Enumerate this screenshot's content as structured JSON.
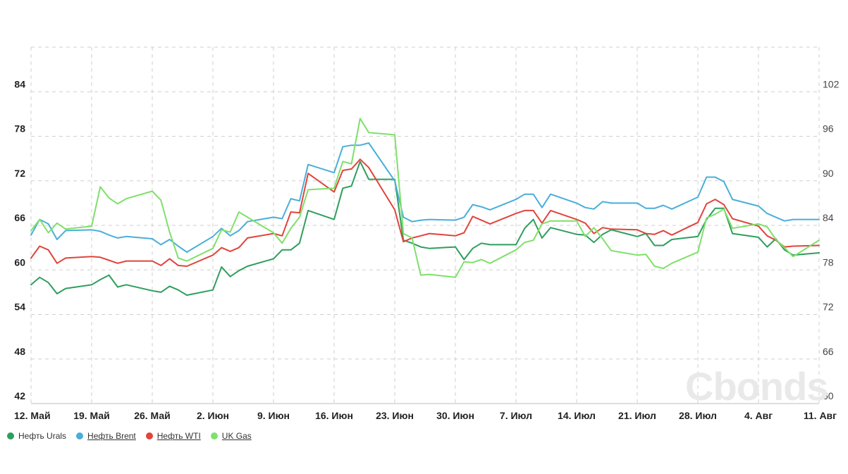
{
  "watermark": "Cbonds",
  "chart_data": {
    "type": "line",
    "x_ticks": [
      "12. Май",
      "19. Май",
      "26. Май",
      "2. Июн",
      "9. Июн",
      "16. Июн",
      "23. Июн",
      "30. Июн",
      "7. Июл",
      "14. Июл",
      "21. Июл",
      "28. Июл",
      "4. Авг",
      "11. Авг"
    ],
    "x_range": [
      0,
      91
    ],
    "y_left": {
      "ticks": [
        42,
        48,
        54,
        60,
        66,
        72,
        78,
        84
      ],
      "range": [
        42,
        90
      ]
    },
    "y_right": {
      "ticks": [
        60,
        66,
        72,
        78,
        84,
        90,
        96,
        102
      ],
      "range": [
        60,
        108
      ]
    },
    "grid": true,
    "legend_position": "bottom-left",
    "series": [
      {
        "name": "Нефть Urals",
        "color": "#2e9e5e",
        "axis": "left",
        "underlined": false,
        "points": [
          [
            0,
            58.0
          ],
          [
            1,
            59.0
          ],
          [
            2,
            58.3
          ],
          [
            3,
            56.8
          ],
          [
            4,
            57.5
          ],
          [
            7,
            58.0
          ],
          [
            8,
            58.7
          ],
          [
            9,
            59.3
          ],
          [
            10,
            57.7
          ],
          [
            11,
            58.0
          ],
          [
            14,
            57.2
          ],
          [
            15,
            57.0
          ],
          [
            16,
            57.8
          ],
          [
            17,
            57.3
          ],
          [
            18,
            56.6
          ],
          [
            21,
            57.3
          ],
          [
            22,
            60.4
          ],
          [
            23,
            59.1
          ],
          [
            24,
            59.9
          ],
          [
            25,
            60.5
          ],
          [
            28,
            61.5
          ],
          [
            29,
            62.7
          ],
          [
            30,
            62.7
          ],
          [
            31,
            63.6
          ],
          [
            32,
            68.0
          ],
          [
            35,
            66.8
          ],
          [
            36,
            71.0
          ],
          [
            37,
            71.3
          ],
          [
            38,
            74.6
          ],
          [
            39,
            72.2
          ],
          [
            42,
            72.2
          ],
          [
            43,
            64.0
          ],
          [
            44,
            63.6
          ],
          [
            45,
            63.1
          ],
          [
            46,
            62.9
          ],
          [
            49,
            63.1
          ],
          [
            50,
            61.4
          ],
          [
            51,
            62.9
          ],
          [
            52,
            63.6
          ],
          [
            53,
            63.4
          ],
          [
            56,
            63.4
          ],
          [
            57,
            65.6
          ],
          [
            58,
            66.8
          ],
          [
            59,
            64.3
          ],
          [
            60,
            65.7
          ],
          [
            63,
            64.8
          ],
          [
            64,
            64.7
          ],
          [
            65,
            63.7
          ],
          [
            66,
            64.8
          ],
          [
            67,
            65.4
          ],
          [
            70,
            64.5
          ],
          [
            71,
            64.9
          ],
          [
            72,
            63.3
          ],
          [
            73,
            63.3
          ],
          [
            74,
            64.1
          ],
          [
            77,
            64.5
          ],
          [
            78,
            66.8
          ],
          [
            79,
            68.3
          ],
          [
            80,
            68.3
          ],
          [
            81,
            64.9
          ],
          [
            84,
            64.4
          ],
          [
            85,
            63.1
          ],
          [
            86,
            64.2
          ],
          [
            87,
            62.7
          ],
          [
            88,
            62.0
          ],
          [
            91,
            62.3
          ]
        ]
      },
      {
        "name": "Нефть Brent",
        "color": "#4aaed9",
        "axis": "left",
        "underlined": true,
        "points": [
          [
            0,
            64.7
          ],
          [
            1,
            66.8
          ],
          [
            2,
            66.2
          ],
          [
            3,
            64.1
          ],
          [
            4,
            65.3
          ],
          [
            7,
            65.4
          ],
          [
            8,
            65.2
          ],
          [
            9,
            64.7
          ],
          [
            10,
            64.3
          ],
          [
            11,
            64.5
          ],
          [
            14,
            64.2
          ],
          [
            15,
            63.4
          ],
          [
            16,
            64.1
          ],
          [
            17,
            63.2
          ],
          [
            18,
            62.4
          ],
          [
            21,
            64.5
          ],
          [
            22,
            65.6
          ],
          [
            23,
            64.6
          ],
          [
            24,
            65.3
          ],
          [
            25,
            66.5
          ],
          [
            28,
            67.1
          ],
          [
            29,
            66.9
          ],
          [
            30,
            69.6
          ],
          [
            31,
            69.3
          ],
          [
            32,
            74.2
          ],
          [
            35,
            73.1
          ],
          [
            36,
            76.6
          ],
          [
            37,
            76.8
          ],
          [
            38,
            76.8
          ],
          [
            39,
            77.1
          ],
          [
            42,
            72.0
          ],
          [
            43,
            67.1
          ],
          [
            44,
            66.5
          ],
          [
            45,
            66.7
          ],
          [
            46,
            66.8
          ],
          [
            49,
            66.7
          ],
          [
            50,
            67.1
          ],
          [
            51,
            68.8
          ],
          [
            52,
            68.5
          ],
          [
            53,
            68.1
          ],
          [
            56,
            69.5
          ],
          [
            57,
            70.2
          ],
          [
            58,
            70.2
          ],
          [
            59,
            68.4
          ],
          [
            60,
            70.2
          ],
          [
            63,
            69.0
          ],
          [
            64,
            68.4
          ],
          [
            65,
            68.2
          ],
          [
            66,
            69.2
          ],
          [
            67,
            69.0
          ],
          [
            70,
            69.0
          ],
          [
            71,
            68.3
          ],
          [
            72,
            68.3
          ],
          [
            73,
            68.7
          ],
          [
            74,
            68.2
          ],
          [
            77,
            69.8
          ],
          [
            78,
            72.5
          ],
          [
            79,
            72.5
          ],
          [
            80,
            71.9
          ],
          [
            81,
            69.5
          ],
          [
            84,
            68.6
          ],
          [
            85,
            67.6
          ],
          [
            86,
            67.1
          ],
          [
            87,
            66.6
          ],
          [
            88,
            66.8
          ],
          [
            91,
            66.8
          ]
        ]
      },
      {
        "name": "Нефть WTI",
        "color": "#e0443c",
        "axis": "left",
        "underlined": true,
        "points": [
          [
            0,
            61.6
          ],
          [
            1,
            63.2
          ],
          [
            2,
            62.7
          ],
          [
            3,
            60.9
          ],
          [
            4,
            61.6
          ],
          [
            7,
            61.8
          ],
          [
            8,
            61.7
          ],
          [
            9,
            61.3
          ],
          [
            10,
            60.9
          ],
          [
            11,
            61.2
          ],
          [
            14,
            61.2
          ],
          [
            15,
            60.6
          ],
          [
            16,
            61.5
          ],
          [
            17,
            60.6
          ],
          [
            18,
            60.5
          ],
          [
            21,
            62.0
          ],
          [
            22,
            63.0
          ],
          [
            23,
            62.5
          ],
          [
            24,
            63.0
          ],
          [
            25,
            64.3
          ],
          [
            28,
            64.9
          ],
          [
            29,
            64.6
          ],
          [
            30,
            67.8
          ],
          [
            31,
            67.7
          ],
          [
            32,
            73.0
          ],
          [
            35,
            70.5
          ],
          [
            36,
            73.4
          ],
          [
            37,
            73.6
          ],
          [
            38,
            74.9
          ],
          [
            39,
            73.8
          ],
          [
            42,
            68.1
          ],
          [
            43,
            63.8
          ],
          [
            44,
            64.3
          ],
          [
            45,
            64.6
          ],
          [
            46,
            64.9
          ],
          [
            49,
            64.6
          ],
          [
            50,
            65.0
          ],
          [
            51,
            67.2
          ],
          [
            52,
            66.7
          ],
          [
            53,
            66.2
          ],
          [
            56,
            67.6
          ],
          [
            57,
            68.0
          ],
          [
            58,
            68.0
          ],
          [
            59,
            66.3
          ],
          [
            60,
            68.0
          ],
          [
            63,
            66.8
          ],
          [
            64,
            66.3
          ],
          [
            65,
            64.9
          ],
          [
            66,
            65.7
          ],
          [
            67,
            65.5
          ],
          [
            70,
            65.4
          ],
          [
            71,
            64.9
          ],
          [
            72,
            64.8
          ],
          [
            73,
            65.3
          ],
          [
            74,
            64.7
          ],
          [
            77,
            66.4
          ],
          [
            78,
            68.9
          ],
          [
            79,
            69.5
          ],
          [
            80,
            68.8
          ],
          [
            81,
            66.9
          ],
          [
            84,
            65.9
          ],
          [
            85,
            64.6
          ],
          [
            86,
            64.0
          ],
          [
            87,
            63.1
          ],
          [
            88,
            63.2
          ],
          [
            91,
            63.3
          ]
        ]
      },
      {
        "name": "UK Gas",
        "color": "#7fe06a",
        "axis": "right",
        "underlined": true,
        "points": [
          [
            0,
            83.3
          ],
          [
            1,
            84.8
          ],
          [
            2,
            83.0
          ],
          [
            3,
            84.3
          ],
          [
            4,
            83.5
          ],
          [
            7,
            83.9
          ],
          [
            8,
            89.2
          ],
          [
            9,
            87.7
          ],
          [
            10,
            86.9
          ],
          [
            11,
            87.6
          ],
          [
            14,
            88.6
          ],
          [
            15,
            87.4
          ],
          [
            16,
            83.1
          ],
          [
            17,
            79.6
          ],
          [
            18,
            79.2
          ],
          [
            21,
            80.9
          ],
          [
            22,
            83.4
          ],
          [
            23,
            83.1
          ],
          [
            24,
            85.8
          ],
          [
            25,
            85.1
          ],
          [
            28,
            83.0
          ],
          [
            29,
            81.6
          ],
          [
            30,
            83.6
          ],
          [
            31,
            85.1
          ],
          [
            32,
            88.8
          ],
          [
            35,
            89.0
          ],
          [
            36,
            92.6
          ],
          [
            37,
            92.3
          ],
          [
            38,
            98.4
          ],
          [
            39,
            96.5
          ],
          [
            42,
            96.2
          ],
          [
            43,
            82.9
          ],
          [
            44,
            82.3
          ],
          [
            45,
            77.3
          ],
          [
            46,
            77.4
          ],
          [
            49,
            77.0
          ],
          [
            50,
            79.1
          ],
          [
            51,
            79.0
          ],
          [
            52,
            79.4
          ],
          [
            53,
            78.9
          ],
          [
            56,
            80.7
          ],
          [
            57,
            81.7
          ],
          [
            58,
            82.0
          ],
          [
            59,
            84.2
          ],
          [
            60,
            84.6
          ],
          [
            63,
            84.6
          ],
          [
            64,
            82.5
          ],
          [
            65,
            83.7
          ],
          [
            66,
            82.2
          ],
          [
            67,
            80.6
          ],
          [
            70,
            80.0
          ],
          [
            71,
            80.1
          ],
          [
            72,
            78.5
          ],
          [
            73,
            78.2
          ],
          [
            74,
            78.9
          ],
          [
            77,
            80.4
          ],
          [
            78,
            85.0
          ],
          [
            79,
            85.5
          ],
          [
            80,
            86.2
          ],
          [
            81,
            83.6
          ],
          [
            84,
            84.2
          ],
          [
            85,
            83.8
          ],
          [
            86,
            82.1
          ],
          [
            87,
            81.0
          ],
          [
            88,
            79.8
          ],
          [
            91,
            82.0
          ]
        ]
      }
    ]
  }
}
